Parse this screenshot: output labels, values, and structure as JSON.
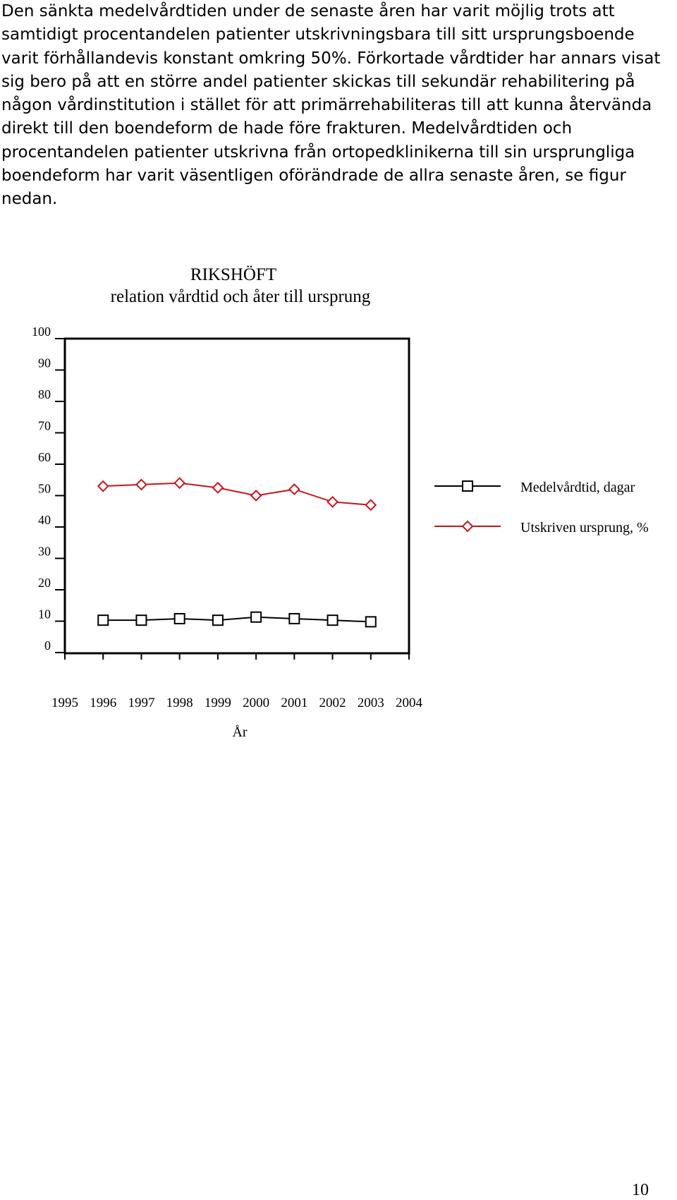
{
  "paragraph": "Den sänkta medelvårdtiden under de senaste åren har varit möjlig trots att samtidigt procentandelen patienter utskrivningsbara till sitt ursprungsboende varit förhållandevis konstant omkring 50%. Förkortade vårdtider har annars visat sig bero på att en större andel patienter skickas till sekundär rehabilitering på någon vårdinstitution i stället för att primärrehabiliteras till att kunna återvända direkt till den boendeform de hade före frakturen. Medelvårdtiden och procentandelen patienter utskrivna från ortopedklinikerna till sin ursprungliga boendeform har varit väsentligen oförändrade de allra senaste åren, se figur nedan.",
  "page_number": "10",
  "chart_data": {
    "type": "line",
    "title": "RIKSHÖFT",
    "subtitle": "relation vårdtid och åter till ursprung",
    "xlabel": "År",
    "ylabel": "",
    "x_ticks": [
      "1995",
      "1996",
      "1997",
      "1998",
      "1999",
      "2000",
      "2001",
      "2002",
      "2003",
      "2004"
    ],
    "xlim": [
      1995,
      2004
    ],
    "y_ticks": [
      "0",
      "10",
      "20",
      "30",
      "40",
      "50",
      "60",
      "70",
      "80",
      "90",
      "100"
    ],
    "ylim": [
      0,
      100
    ],
    "grid": false,
    "legend_position": "right",
    "x": [
      1996,
      1997,
      1998,
      1999,
      2000,
      2001,
      2002,
      2003
    ],
    "series": [
      {
        "name": "Medelvårdtid, dagar",
        "marker": "square",
        "color": "#000000",
        "values": [
          10.3,
          10.3,
          10.8,
          10.3,
          11.3,
          10.8,
          10.3,
          9.8
        ]
      },
      {
        "name": "Utskriven ursprung, %",
        "marker": "diamond",
        "color": "#c8151b",
        "values": [
          53,
          53.5,
          54,
          52.5,
          50,
          52,
          48,
          47
        ]
      }
    ]
  }
}
